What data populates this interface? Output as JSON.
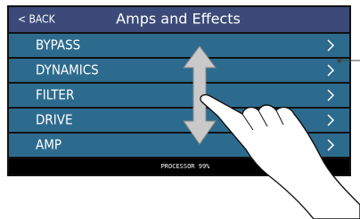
{
  "header": {
    "back": "< BACK",
    "title": "Amps and Effects"
  },
  "menu": {
    "items": [
      "BYPASS",
      "DYNAMICS",
      "FILTER",
      "DRIVE",
      "AMP"
    ]
  },
  "status": {
    "processor": "PROCESSOR  99%"
  }
}
